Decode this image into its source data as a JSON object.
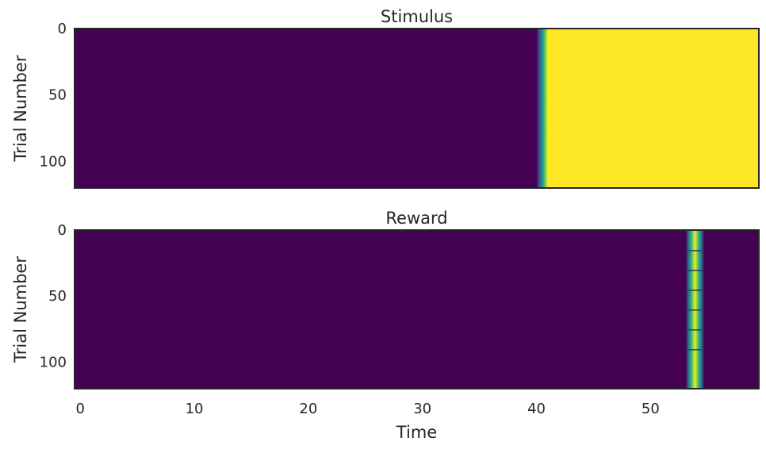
{
  "chart_data": [
    {
      "type": "heatmap",
      "title": "Stimulus",
      "ylabel": "Trial Number",
      "xlabel": "",
      "x_range": [
        -0.5,
        59.5
      ],
      "y_range": [
        -0.5,
        119.5
      ],
      "y_ticks": [
        0,
        50,
        100
      ],
      "x_ticks": [],
      "colormap": "viridis",
      "grid": false,
      "low_color": "#440154",
      "high_color": "#fde725",
      "onset_time": 40.5,
      "transition_width": 0.5
    },
    {
      "type": "heatmap",
      "title": "Reward",
      "ylabel": "Trial Number",
      "xlabel": "Time",
      "x_range": [
        -0.5,
        59.5
      ],
      "y_range": [
        -0.5,
        119.5
      ],
      "y_ticks": [
        0,
        50,
        100
      ],
      "x_ticks": [
        0,
        10,
        20,
        30,
        40,
        50
      ],
      "colormap": "viridis",
      "grid": false,
      "low_color": "#440154",
      "high_color": "#fde725",
      "pulse_center": 53.9,
      "pulse_halfwidth": 0.8,
      "trial_separators": [
        15,
        30,
        45,
        60,
        75,
        90
      ]
    }
  ]
}
